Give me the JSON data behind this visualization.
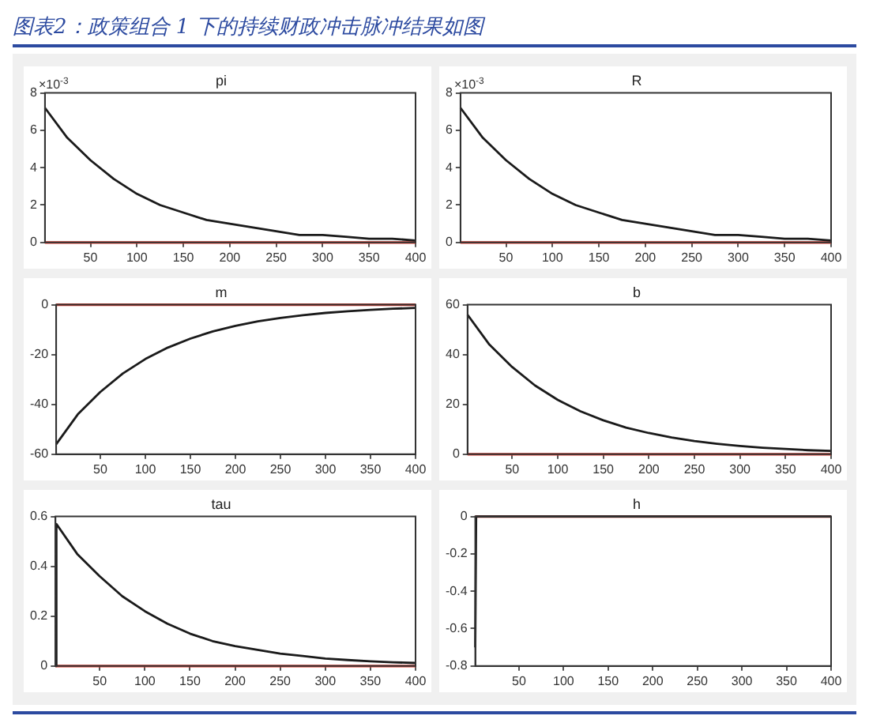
{
  "chart_data": [
    {
      "type": "line",
      "title": "pi",
      "ylabel": "×10$^{-3}$",
      "annotations": [
        "图表2：政策组合 1 下的持续财政冲击脉冲结果如图"
      ],
      "x": [
        1,
        25,
        50,
        75,
        100,
        125,
        150,
        175,
        200,
        225,
        250,
        275,
        300,
        325,
        350,
        375,
        400
      ],
      "series": [
        {
          "color": "#1a1a1a",
          "values": [
            7.2,
            5.6,
            4.4,
            3.4,
            2.6,
            2.0,
            1.6,
            1.2,
            1.0,
            0.8,
            0.6,
            0.4,
            0.4,
            0.3,
            0.2,
            0.2,
            0.1
          ]
        }
      ],
      "xlim": [
        1,
        400
      ],
      "xticks": [
        50,
        100,
        150,
        200,
        250,
        300,
        350,
        400
      ],
      "ylim": [
        0,
        8
      ],
      "yticks": [
        0,
        2,
        4,
        6,
        8
      ],
      "ref_lines": [
        {
          "axis": "y",
          "value": 0,
          "color": "#e0392c"
        }
      ],
      "marker": "none",
      "line_style": "solid",
      "legend": false,
      "grid": false
    },
    {
      "type": "line",
      "title": "R",
      "ylabel": "×10$^{-3}$",
      "x": [
        1,
        25,
        50,
        75,
        100,
        125,
        150,
        175,
        200,
        225,
        250,
        275,
        300,
        325,
        350,
        375,
        400
      ],
      "series": [
        {
          "color": "#1a1a1a",
          "values": [
            7.2,
            5.6,
            4.4,
            3.4,
            2.6,
            2.0,
            1.6,
            1.2,
            1.0,
            0.8,
            0.6,
            0.4,
            0.4,
            0.3,
            0.2,
            0.2,
            0.1
          ]
        }
      ],
      "xlim": [
        1,
        400
      ],
      "xticks": [
        50,
        100,
        150,
        200,
        250,
        300,
        350,
        400
      ],
      "ylim": [
        0,
        8
      ],
      "yticks": [
        0,
        2,
        4,
        6,
        8
      ],
      "ref_lines": [
        {
          "axis": "y",
          "value": 0,
          "color": "#e0392c"
        }
      ],
      "marker": "none",
      "line_style": "solid",
      "legend": false,
      "grid": false
    },
    {
      "type": "line",
      "title": "m",
      "x": [
        1,
        25,
        50,
        75,
        100,
        125,
        150,
        175,
        200,
        225,
        250,
        275,
        300,
        325,
        350,
        375,
        400
      ],
      "series": [
        {
          "color": "#1a1a1a",
          "values": [
            -56,
            -44,
            -35,
            -27.6,
            -21.8,
            -17.2,
            -13.6,
            -10.7,
            -8.5,
            -6.7,
            -5.3,
            -4.2,
            -3.3,
            -2.6,
            -2.1,
            -1.6,
            -1.3
          ]
        }
      ],
      "xlim": [
        1,
        400
      ],
      "xticks": [
        50,
        100,
        150,
        200,
        250,
        300,
        350,
        400
      ],
      "ylim": [
        -60,
        0
      ],
      "yticks": [
        -60,
        -40,
        -20,
        0
      ],
      "ref_lines": [
        {
          "axis": "y",
          "value": 0,
          "color": "#e0392c"
        }
      ],
      "marker": "none",
      "line_style": "solid",
      "legend": false,
      "grid": false
    },
    {
      "type": "line",
      "title": "b",
      "x": [
        1,
        25,
        50,
        75,
        100,
        125,
        150,
        175,
        200,
        225,
        250,
        275,
        300,
        325,
        350,
        375,
        400
      ],
      "series": [
        {
          "color": "#1a1a1a",
          "values": [
            56,
            44,
            35,
            27.6,
            21.8,
            17.2,
            13.6,
            10.7,
            8.5,
            6.7,
            5.3,
            4.2,
            3.3,
            2.6,
            2.1,
            1.6,
            1.3
          ]
        }
      ],
      "xlim": [
        1,
        400
      ],
      "xticks": [
        50,
        100,
        150,
        200,
        250,
        300,
        350,
        400
      ],
      "ylim": [
        0,
        60
      ],
      "yticks": [
        0,
        20,
        40,
        60
      ],
      "ref_lines": [
        {
          "axis": "y",
          "value": 0,
          "color": "#e0392c"
        }
      ],
      "marker": "none",
      "line_style": "solid",
      "legend": false,
      "grid": false
    },
    {
      "type": "line",
      "title": "tau",
      "x": [
        1,
        2,
        25,
        50,
        75,
        100,
        125,
        150,
        175,
        200,
        225,
        250,
        275,
        300,
        325,
        350,
        375,
        400
      ],
      "series": [
        {
          "color": "#1a1a1a",
          "values": [
            0,
            0.57,
            0.45,
            0.36,
            0.28,
            0.22,
            0.17,
            0.13,
            0.1,
            0.08,
            0.065,
            0.05,
            0.04,
            0.03,
            0.024,
            0.019,
            0.015,
            0.012
          ]
        }
      ],
      "xlim": [
        1,
        400
      ],
      "xticks": [
        50,
        100,
        150,
        200,
        250,
        300,
        350,
        400
      ],
      "ylim": [
        0,
        0.6
      ],
      "yticks": [
        0,
        0.2,
        0.4,
        0.6
      ],
      "ref_lines": [
        {
          "axis": "y",
          "value": 0,
          "color": "#e0392c"
        }
      ],
      "marker": "none",
      "line_style": "solid",
      "legend": false,
      "grid": false
    },
    {
      "type": "line",
      "title": "h",
      "x": [
        1,
        2,
        50,
        100,
        150,
        200,
        250,
        300,
        350,
        400
      ],
      "series": [
        {
          "color": "#1a1a1a",
          "values": [
            -0.7,
            0,
            0,
            0,
            0,
            0,
            0,
            0,
            0,
            0
          ]
        }
      ],
      "xlim": [
        1,
        400
      ],
      "xticks": [
        50,
        100,
        150,
        200,
        250,
        300,
        350,
        400
      ],
      "ylim": [
        -0.8,
        0
      ],
      "yticks": [
        -0.8,
        -0.6,
        -0.4,
        -0.2,
        0
      ],
      "ref_lines": [
        {
          "axis": "y",
          "value": 0,
          "color": "#e0392c"
        }
      ],
      "marker": "none",
      "line_style": "solid",
      "legend": false,
      "grid": false
    }
  ]
}
